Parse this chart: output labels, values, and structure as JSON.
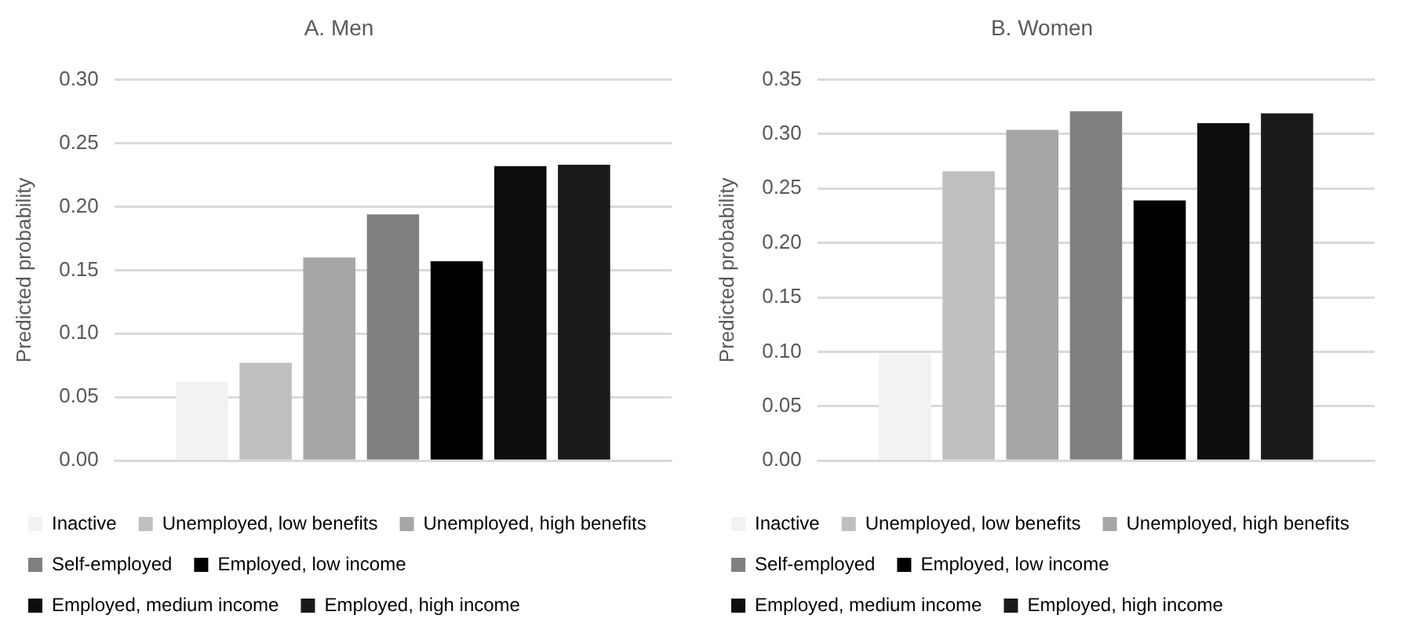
{
  "chart_data": [
    {
      "type": "bar",
      "title": "A. Men",
      "ylabel": "Predicted probability",
      "categories": [
        null
      ],
      "ylim": [
        0,
        0.3
      ],
      "yticks": [
        {
          "value": 0,
          "label": "0.00"
        },
        {
          "value": 0.05,
          "label": "0.05"
        },
        {
          "value": 0.1,
          "label": "0.10"
        },
        {
          "value": 0.15,
          "label": "0.15"
        },
        {
          "value": 0.2,
          "label": "0.20"
        },
        {
          "value": 0.25,
          "label": "0.25"
        },
        {
          "value": 0.3,
          "label": "0.30"
        }
      ],
      "grid": "y",
      "legend": "bottom",
      "series": [
        {
          "name": "Inactive",
          "color": "#f2f2f2",
          "values": [
            0.062
          ]
        },
        {
          "name": "Unemployed, low benefits",
          "color": "#bfbfbf",
          "values": [
            0.077
          ]
        },
        {
          "name": "Unemployed, high benefits",
          "color": "#a6a6a6",
          "values": [
            0.16
          ]
        },
        {
          "name": "Self-employed",
          "color": "#808080",
          "values": [
            0.194
          ]
        },
        {
          "name": "Employed, low income",
          "color": "#000000",
          "values": [
            0.157
          ]
        },
        {
          "name": "Employed, medium income",
          "color": "#0d0d0d",
          "values": [
            0.232
          ]
        },
        {
          "name": "Employed, high income",
          "color": "#1a1a1a",
          "values": [
            0.233
          ]
        }
      ]
    },
    {
      "type": "bar",
      "title": "B. Women",
      "ylabel": "Predicted probability",
      "categories": [
        null
      ],
      "ylim": [
        0,
        0.35
      ],
      "yticks": [
        {
          "value": 0,
          "label": "0.00"
        },
        {
          "value": 0.05,
          "label": "0.05"
        },
        {
          "value": 0.1,
          "label": "0.10"
        },
        {
          "value": 0.15,
          "label": "0.15"
        },
        {
          "value": 0.2,
          "label": "0.20"
        },
        {
          "value": 0.25,
          "label": "0.25"
        },
        {
          "value": 0.3,
          "label": "0.30"
        },
        {
          "value": 0.35,
          "label": "0.35"
        }
      ],
      "grid": "y",
      "legend": "bottom",
      "series": [
        {
          "name": "Inactive",
          "color": "#f2f2f2",
          "values": [
            0.098
          ]
        },
        {
          "name": "Unemployed, low benefits",
          "color": "#bfbfbf",
          "values": [
            0.266
          ]
        },
        {
          "name": "Unemployed, high benefits",
          "color": "#a6a6a6",
          "values": [
            0.304
          ]
        },
        {
          "name": "Self-employed",
          "color": "#808080",
          "values": [
            0.321
          ]
        },
        {
          "name": "Employed, low income",
          "color": "#000000",
          "values": [
            0.239
          ]
        },
        {
          "name": "Employed, medium income",
          "color": "#0d0d0d",
          "values": [
            0.31
          ]
        },
        {
          "name": "Employed, high income",
          "color": "#1a1a1a",
          "values": [
            0.319
          ]
        }
      ]
    }
  ]
}
